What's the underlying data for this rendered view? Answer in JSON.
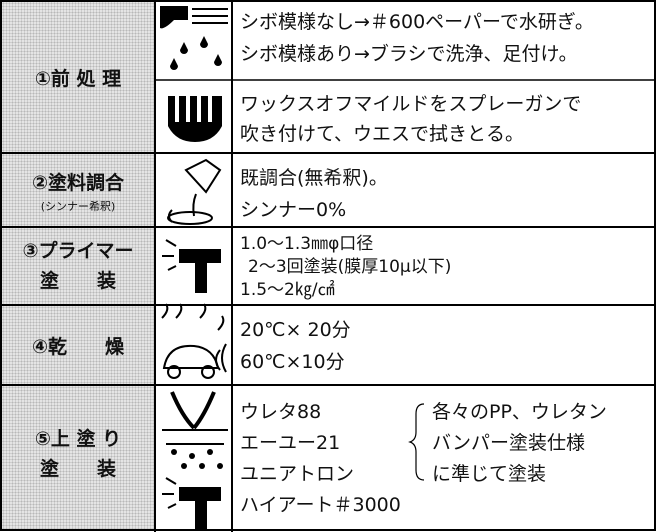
{
  "steps": [
    {
      "label": [
        "①前 処 理"
      ],
      "blocks": [
        [
          "シボ模様なし→＃600ペーパーで水研ぎ。",
          "シボ模様あり→ブラシで洗浄、足付け。"
        ],
        [
          "ワックスオフマイルドをスプレーガンで",
          "吹き付けて、ウエスで拭きとる。"
        ]
      ]
    },
    {
      "label": [
        "②塗料調合"
      ],
      "sublabel": "(シンナー希釈)",
      "blocks": [
        [
          "既調合(無希釈)。",
          "シンナー0%"
        ]
      ]
    },
    {
      "label": [
        "③プライマー",
        "塗　　装"
      ],
      "blocks": [
        [
          "1.0～1.3㎜φ口径",
          "2～3回塗装(膜厚10μ以下)",
          "1.5～2㎏/㎠"
        ]
      ]
    },
    {
      "label": [
        "④乾　　燥"
      ],
      "blocks": [
        [
          "20℃× 20分",
          "60℃×10分"
        ]
      ]
    },
    {
      "label": [
        "⑤上 塗 り",
        "塗　　装"
      ],
      "blocks": [
        [
          "ウレタ88",
          "エーユー21",
          "ユニアトロン",
          "ハイアート＃3000"
        ]
      ],
      "note": [
        "各々のPP、ウレタン",
        "バンパー塗装仕様",
        "に準じて塗装"
      ]
    }
  ]
}
